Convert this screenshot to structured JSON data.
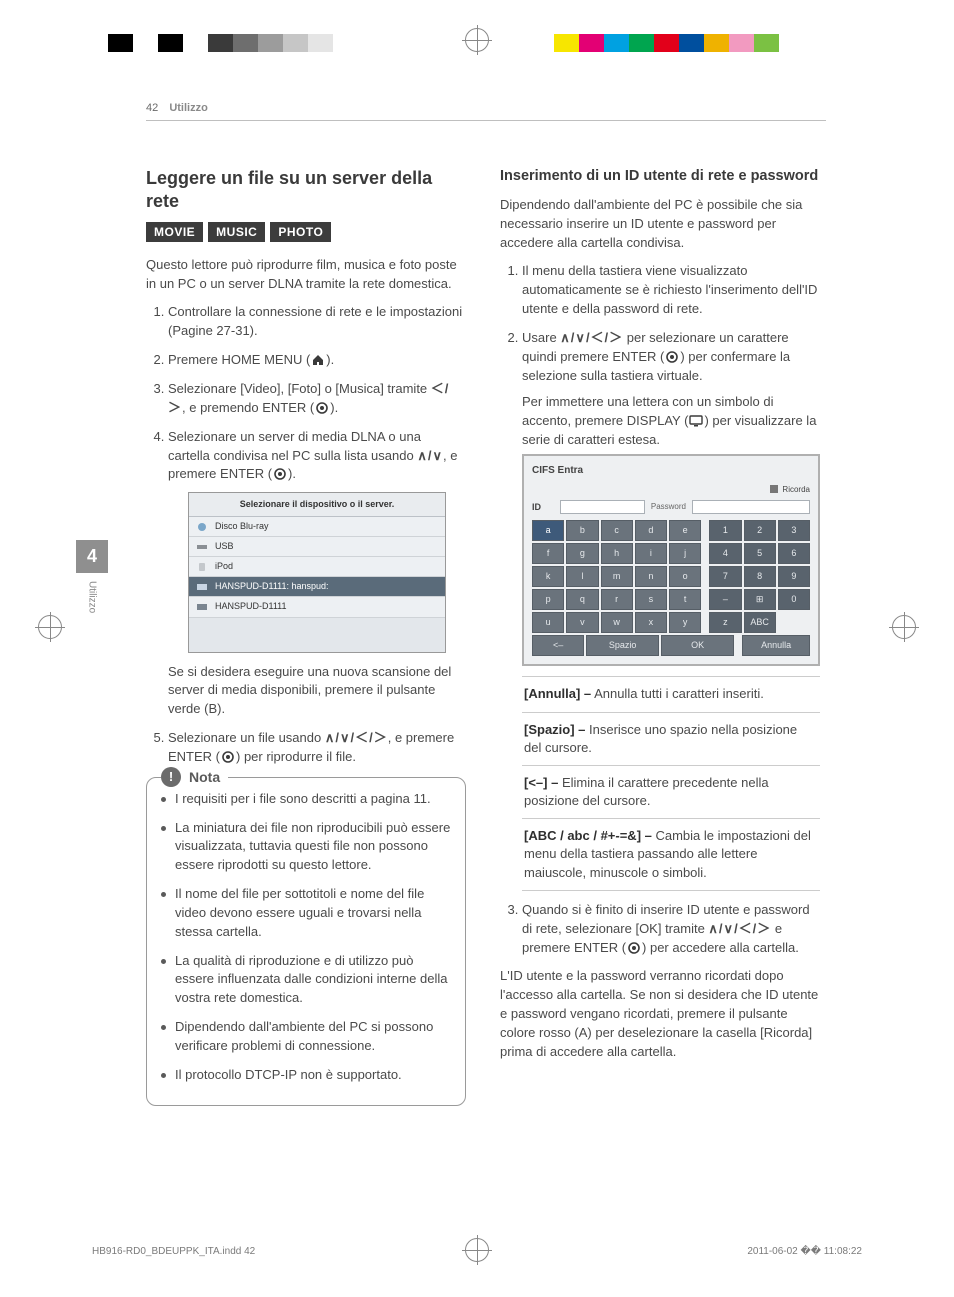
{
  "page": {
    "number": "42",
    "section": "Utilizzo"
  },
  "sidetab": {
    "num": "4",
    "label": "Utilizzo"
  },
  "swatches_left": [
    "#000000",
    "#ffffff",
    "#000000",
    "#ffffff",
    "#3a3a3a",
    "#6e6e6e",
    "#9c9c9c",
    "#c6c6c6",
    "#e5e5e5"
  ],
  "swatches_right": [
    "#f7e600",
    "#e30074",
    "#00a1e1",
    "#00a54f",
    "#e2001a",
    "#004f9e",
    "#efb200",
    "#f29ac0",
    "#7bc143"
  ],
  "left": {
    "heading": "Leggere un file su un server della rete",
    "badges": [
      "MOVIE",
      "MUSIC",
      "PHOTO"
    ],
    "intro": "Questo lettore può riprodurre film, musica e foto poste in un PC o un server DLNA tramite la rete domestica.",
    "steps": {
      "s1": "Controllare la connessione di rete e le impostazioni (Pagine 27-31).",
      "s2a": "Premere HOME MENU (",
      "s2b": ").",
      "s3a": "Selezionare [Video], [Foto] o [Musica] tramite ",
      "s3arrows": "＜/＞",
      "s3b": ", e premendo ENTER (",
      "s3c": ").",
      "s4a": "Selezionare un server di media DLNA o una cartella condivisa nel PC sulla lista usando ",
      "s4arrows": "∧/∨",
      "s4b": ", e premere ENTER (",
      "s4c": ").",
      "devlist": {
        "title": "Selezionare il dispositivo o il server.",
        "items": [
          "Disco Blu-ray",
          "USB",
          "iPod",
          "HANSPUD-D1111: hanspud:",
          "HANSPUD-D1111"
        ],
        "selected_index": 3
      },
      "s4note": "Se si desidera eseguire una nuova scansione del server di media disponibili, premere il pulsante verde (B).",
      "s5a": "Selezionare un file usando ",
      "s5arrows": "∧/∨/＜/＞",
      "s5b": ", e premere ENTER (",
      "s5c": ") per riprodurre il file."
    },
    "nota": {
      "label": "Nota",
      "items": [
        "I requisiti per i file sono descritti a pagina 11.",
        "La miniatura dei file non riproducibili può essere visualizzata, tuttavia questi file non possono essere riprodotti su questo lettore.",
        "Il nome del file per sottotitoli e nome del file video devono essere uguali e trovarsi nella stessa cartella.",
        "La qualità di riproduzione e di utilizzo può essere influenzata dalle condizioni interne della vostra rete domestica.",
        "Dipendendo dall'ambiente del PC si possono verificare problemi di connessione.",
        "Il protocollo DTCP-IP non è supportato."
      ]
    }
  },
  "right": {
    "heading": "Inserimento di un ID utente di rete e password",
    "intro": "Dipendendo dall'ambiente del PC è possibile che sia necessario inserire un ID utente e password per accedere alla cartella condivisa.",
    "steps": {
      "s1": "Il menu della tastiera viene visualizzato automaticamente se è richiesto l'inserimento dell'ID utente e della password di rete.",
      "s2a": "Usare ",
      "s2arrows": "∧/∨/＜/＞",
      "s2b": " per selezionare un carattere quindi premere ENTER (",
      "s2c": ") per confermare la selezione sulla tastiera virtuale.",
      "s2sub_a": "Per immettere una lettera con un simbolo di accento, premere DISPLAY (",
      "s2sub_b": ") per visualizzare la serie di caratteri estesa.",
      "s3a": "Quando si è finito di inserire ID utente e password di rete, selezionare [OK] tramite ",
      "s3arrows": "∧/∨/＜/＞",
      "s3b": " e premere ENTER (",
      "s3c": ") per accedere alla cartella."
    },
    "keyboard": {
      "title": "CIFS Entra",
      "remember": "Ricorda",
      "id_label": "ID",
      "pw_label": "Password",
      "rows": [
        [
          "a",
          "b",
          "c",
          "d",
          "e",
          "1",
          "2",
          "3"
        ],
        [
          "f",
          "g",
          "h",
          "i",
          "j",
          "4",
          "5",
          "6"
        ],
        [
          "k",
          "l",
          "m",
          "n",
          "o",
          "7",
          "8",
          "9"
        ],
        [
          "p",
          "q",
          "r",
          "s",
          "t",
          "–",
          "⊞",
          "0"
        ],
        [
          "u",
          "v",
          "w",
          "x",
          "y",
          "z",
          "ABC",
          ""
        ]
      ],
      "bottom": [
        "<–",
        "Spazio",
        "OK",
        "Annulla"
      ]
    },
    "options": [
      {
        "k": "[Annulla] –",
        "v": " Annulla tutti i caratteri inseriti."
      },
      {
        "k": "[Spazio] –",
        "v": " Inserisce uno spazio nella posizione del cursore."
      },
      {
        "k": "[<–] –",
        "v": " Elimina il carattere precedente nella posizione del cursore."
      },
      {
        "k": "[ABC / abc / #+-=&] –",
        "v": " Cambia le impostazioni del menu della tastiera passando alle lettere maiuscole, minuscole o simboli."
      }
    ],
    "closing": "L'ID utente e la password verranno ricordati dopo l'accesso alla cartella. Se non si desidera che ID utente e password vengano ricordati, premere il pulsante colore rosso (A) per deselezionare la casella [Ricorda] prima di accedere alla cartella."
  },
  "footer": {
    "file": "HB916-RD0_BDEUPPK_ITA.indd   42",
    "stamp": "2011-06-02   �� 11:08:22"
  }
}
